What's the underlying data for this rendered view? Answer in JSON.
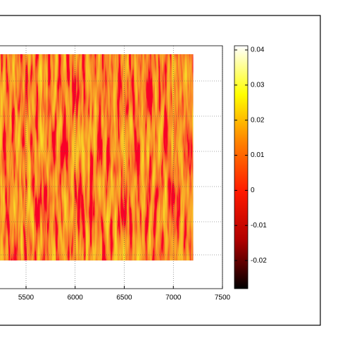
{
  "chart_data": {
    "type": "heatmap",
    "xlim": [
      4000,
      7500
    ],
    "xticks": [
      5500,
      6000,
      6500,
      7000,
      7500
    ],
    "image_xmax": 7200,
    "colorbar": {
      "lim": [
        -0.028,
        0.0412
      ],
      "ticks": [
        -0.02,
        -0.01,
        0,
        0.01,
        0.02,
        0.03,
        0.04
      ],
      "colors": [
        "#000000",
        "#b00000",
        "#ff1a00",
        "#ff8000",
        "#ffff00",
        "#ffffff"
      ]
    },
    "grid": true
  }
}
